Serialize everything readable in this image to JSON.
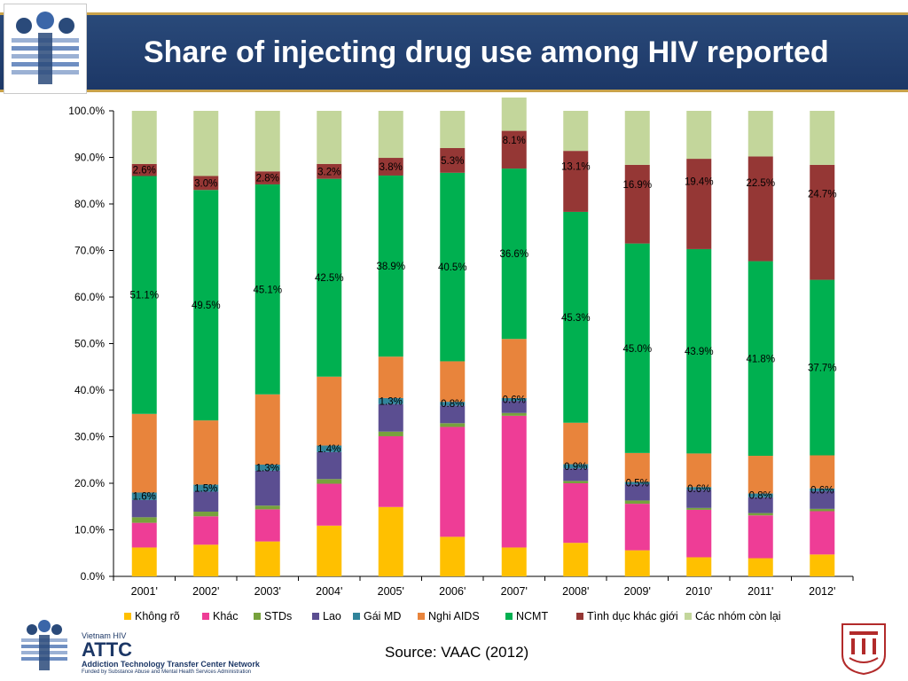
{
  "title": "Share of injecting drug use among HIV reported",
  "source": "Source: VAAC (2012)",
  "footer": {
    "brand_small": "Vietnam HIV",
    "brand_big": "ATTC",
    "network": "Addiction Technology Transfer Center Network",
    "funded": "Funded by Substance Abuse and Mental Health Services Administration"
  },
  "colors": {
    "header_bg": "#1c3766",
    "gold": "#c9a24a"
  },
  "chart_data": {
    "type": "bar",
    "stacked": true,
    "categories": [
      "2001'",
      "2002'",
      "2003'",
      "2004'",
      "2005'",
      "2006'",
      "2007'",
      "2008'",
      "2009'",
      "2010'",
      "2011'",
      "2012'"
    ],
    "ylim": [
      0,
      100
    ],
    "yticks": [
      "0.0%",
      "10.0%",
      "20.0%",
      "30.0%",
      "40.0%",
      "50.0%",
      "60.0%",
      "70.0%",
      "80.0%",
      "90.0%",
      "100.0%"
    ],
    "grid": false,
    "legend_position": "bottom",
    "series": [
      {
        "name": "Không rõ",
        "color": "#ffc000",
        "values": [
          6.2,
          6.8,
          7.5,
          10.9,
          14.9,
          8.5,
          6.2,
          7.2,
          5.6,
          4.1,
          3.9,
          4.7
        ]
      },
      {
        "name": "Khác",
        "color": "#ee3d96",
        "values": [
          5.3,
          6.1,
          6.9,
          9.0,
          15.2,
          23.6,
          28.3,
          12.8,
          10.0,
          10.2,
          9.2,
          9.3
        ]
      },
      {
        "name": "STDs",
        "color": "#77a23c",
        "values": [
          1.2,
          1.0,
          0.8,
          1.0,
          1.0,
          0.8,
          0.6,
          0.5,
          0.7,
          0.4,
          0.5,
          0.5
        ]
      },
      {
        "name": "Lao",
        "color": "#5b4e91",
        "values": [
          3.7,
          4.3,
          7.5,
          5.8,
          5.9,
          3.8,
          2.6,
          2.7,
          3.5,
          3.9,
          3.4,
          3.8
        ]
      },
      {
        "name": "Gái MD",
        "color": "#31849b",
        "values": [
          1.6,
          1.5,
          1.3,
          1.4,
          1.3,
          0.8,
          0.6,
          0.9,
          0.5,
          0.6,
          0.8,
          0.6
        ]
      },
      {
        "name": "Nghi AIDS",
        "color": "#e8843c",
        "values": [
          16.9,
          13.8,
          15.1,
          14.8,
          8.9,
          8.7,
          12.7,
          8.9,
          6.2,
          7.2,
          8.1,
          7.1
        ]
      },
      {
        "name": "NCMT",
        "color": "#00b050",
        "values": [
          51.1,
          49.5,
          45.1,
          42.5,
          38.9,
          40.5,
          36.6,
          45.3,
          45.0,
          43.9,
          41.8,
          37.7
        ]
      },
      {
        "name": "Tình dục khác giới",
        "color": "#953735",
        "values": [
          2.6,
          3.0,
          2.8,
          3.2,
          3.8,
          5.3,
          8.1,
          13.1,
          16.9,
          19.4,
          22.5,
          24.7
        ]
      },
      {
        "name": "Các nhóm còn lại",
        "color": "#c3d69b",
        "values": [
          11.4,
          14.0,
          13.0,
          11.4,
          10.1,
          8.0,
          8.7,
          8.6,
          11.6,
          10.3,
          9.8,
          11.6
        ]
      }
    ],
    "data_labels": [
      {
        "series": "Gái MD",
        "category": "2001'",
        "text": "1.6%"
      },
      {
        "series": "Gái MD",
        "category": "2002'",
        "text": "1.5%"
      },
      {
        "series": "Gái MD",
        "category": "2003'",
        "text": "1.3%"
      },
      {
        "series": "Gái MD",
        "category": "2004'",
        "text": "1.4%"
      },
      {
        "series": "Gái MD",
        "category": "2005'",
        "text": "1.3%"
      },
      {
        "series": "Gái MD",
        "category": "2006'",
        "text": "0.8%"
      },
      {
        "series": "Gái MD",
        "category": "2007'",
        "text": "0.6%"
      },
      {
        "series": "Gái MD",
        "category": "2008'",
        "text": "0.9%"
      },
      {
        "series": "Gái MD",
        "category": "2009'",
        "text": "0.5%"
      },
      {
        "series": "Gái MD",
        "category": "2010'",
        "text": "0.6%"
      },
      {
        "series": "Gái MD",
        "category": "2011'",
        "text": "0.8%"
      },
      {
        "series": "Gái MD",
        "category": "2012'",
        "text": "0.6%"
      },
      {
        "series": "NCMT",
        "category": "2001'",
        "text": "51.1%"
      },
      {
        "series": "NCMT",
        "category": "2002'",
        "text": "49.5%"
      },
      {
        "series": "NCMT",
        "category": "2003'",
        "text": "45.1%"
      },
      {
        "series": "NCMT",
        "category": "2004'",
        "text": "42.5%"
      },
      {
        "series": "NCMT",
        "category": "2005'",
        "text": "38.9%"
      },
      {
        "series": "NCMT",
        "category": "2006'",
        "text": "40.5%"
      },
      {
        "series": "NCMT",
        "category": "2007'",
        "text": "36.6%"
      },
      {
        "series": "NCMT",
        "category": "2008'",
        "text": "45.3%"
      },
      {
        "series": "NCMT",
        "category": "2009'",
        "text": "45.0%"
      },
      {
        "series": "NCMT",
        "category": "2010'",
        "text": "43.9%"
      },
      {
        "series": "NCMT",
        "category": "2011'",
        "text": "41.8%"
      },
      {
        "series": "NCMT",
        "category": "2012'",
        "text": "37.7%"
      },
      {
        "series": "Tình dục khác giới",
        "category": "2001'",
        "text": "2.6%"
      },
      {
        "series": "Tình dục khác giới",
        "category": "2002'",
        "text": "3.0%"
      },
      {
        "series": "Tình dục khác giới",
        "category": "2003'",
        "text": "2.8%"
      },
      {
        "series": "Tình dục khác giới",
        "category": "2004'",
        "text": "3.2%"
      },
      {
        "series": "Tình dục khác giới",
        "category": "2005'",
        "text": "3.8%"
      },
      {
        "series": "Tình dục khác giới",
        "category": "2006'",
        "text": "5.3%"
      },
      {
        "series": "Tình dục khác giới",
        "category": "2007'",
        "text": "8.1%"
      },
      {
        "series": "Tình dục khác giới",
        "category": "2008'",
        "text": "13.1%"
      },
      {
        "series": "Tình dục khác giới",
        "category": "2009'",
        "text": "16.9%"
      },
      {
        "series": "Tình dục khác giới",
        "category": "2010'",
        "text": "19.4%"
      },
      {
        "series": "Tình dục khác giới",
        "category": "2011'",
        "text": "22.5%"
      },
      {
        "series": "Tình dục khác giới",
        "category": "2012'",
        "text": "24.7%"
      }
    ]
  }
}
